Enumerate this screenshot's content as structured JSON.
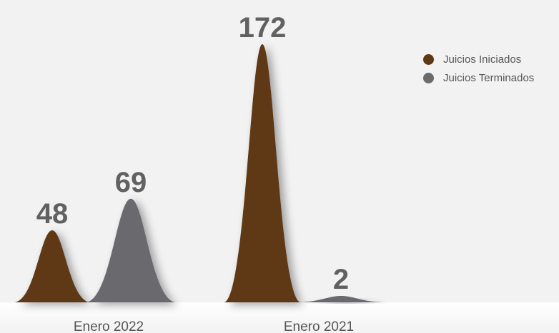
{
  "chart_data": {
    "type": "area",
    "categories": [
      "Enero 2022",
      "Enero 2021"
    ],
    "series": [
      {
        "name": "Juicios Iniciados",
        "values": [
          48,
          172
        ],
        "color": "#5e3815"
      },
      {
        "name": "Juicios Terminados",
        "values": [
          69,
          2
        ],
        "color": "#6b6b6e"
      }
    ],
    "ylim": [
      0,
      172
    ],
    "grid": false,
    "legend_position": "top-right",
    "background": "#f2f2f2"
  }
}
